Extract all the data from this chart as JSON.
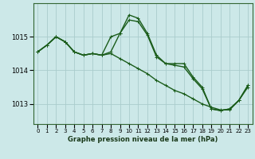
{
  "xlabel": "Graphe pression niveau de la mer (hPa)",
  "background_color": "#cce8e8",
  "grid_color": "#aacccc",
  "line_color": "#1a5c1a",
  "x_labels": [
    "0",
    "1",
    "2",
    "3",
    "4",
    "5",
    "6",
    "7",
    "8",
    "9",
    "10",
    "11",
    "12",
    "13",
    "14",
    "15",
    "16",
    "17",
    "18",
    "19",
    "20",
    "21",
    "22",
    "23"
  ],
  "ylim": [
    1012.4,
    1016.0
  ],
  "yticks": [
    1013,
    1014,
    1015
  ],
  "series1": [
    1014.55,
    1014.75,
    1015.0,
    1014.85,
    1014.55,
    1014.45,
    1014.5,
    1014.45,
    1014.55,
    1015.1,
    1015.65,
    1015.55,
    1015.1,
    1014.45,
    1014.2,
    1014.2,
    1014.2,
    1013.8,
    1013.5,
    1012.85,
    1012.8,
    1012.85,
    1013.1,
    1013.55
  ],
  "series2": [
    1014.55,
    1014.75,
    1015.0,
    1014.85,
    1014.55,
    1014.45,
    1014.5,
    1014.45,
    1015.0,
    1015.1,
    1015.5,
    1015.45,
    1015.05,
    1014.4,
    1014.2,
    1014.15,
    1014.1,
    1013.75,
    1013.45,
    1012.85,
    1012.8,
    1012.85,
    1013.1,
    1013.55
  ],
  "series3": [
    1014.55,
    1014.75,
    1015.0,
    1014.85,
    1014.55,
    1014.45,
    1014.5,
    1014.45,
    1014.5,
    1014.35,
    1014.2,
    1014.05,
    1013.9,
    1013.7,
    1013.55,
    1013.4,
    1013.3,
    1013.15,
    1013.0,
    1012.9,
    1012.82,
    1012.82,
    1013.1,
    1013.5
  ],
  "marker_size": 3,
  "line_width": 1.0,
  "xlabel_fontsize": 6.0,
  "ytick_fontsize": 6.0,
  "xtick_fontsize": 5.0
}
